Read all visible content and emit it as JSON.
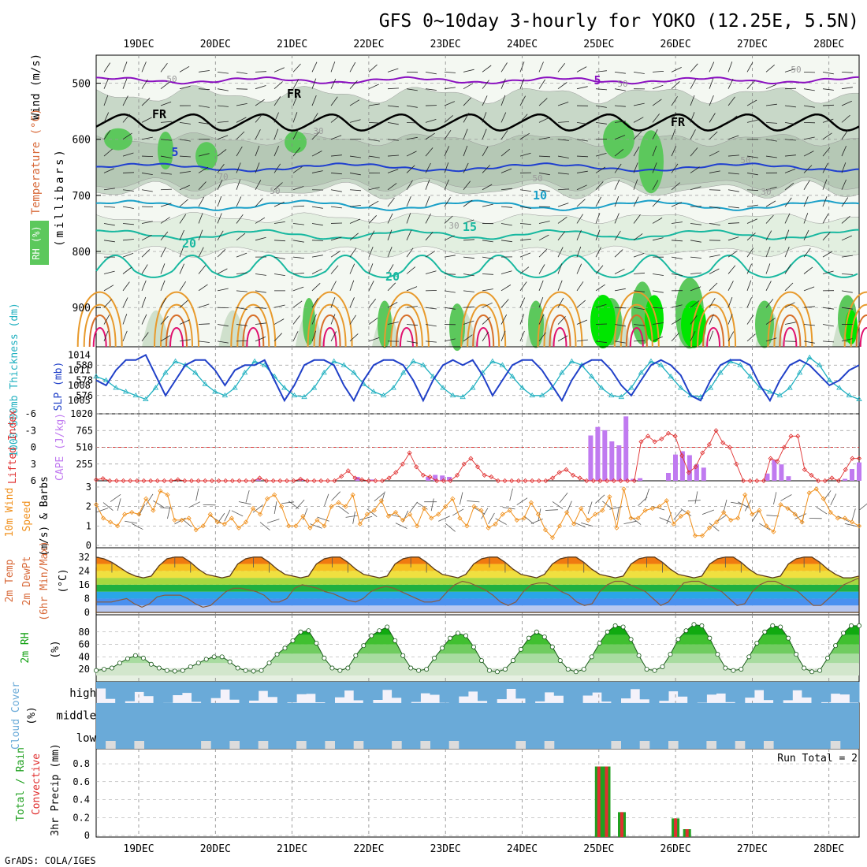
{
  "title": "GFS 0~10day 3-hourly for YOKO (12.25E, 5.5N)",
  "credit": "GrADS: COLA/IGES",
  "days": [
    "19DEC",
    "20DEC",
    "21DEC",
    "22DEC",
    "23DEC",
    "24DEC",
    "25DEC",
    "26DEC",
    "27DEC",
    "28DEC"
  ],
  "colors": {
    "sounding_bg": "#c8d8c8",
    "rh_mid": "#e2efe0",
    "rh_green": "#5cc85c",
    "rh_bright": "#00e600",
    "temp_blue": "#1f3fcf",
    "temp_cyan": "#1aa0c8",
    "temp_teal": "#18b8a0",
    "orange": "#e89a2c",
    "magenta": "#e0106e",
    "purple": "#8a10c0",
    "slp": "#2040c8",
    "thick": "#20b0c0",
    "cape": "#c07af0",
    "li": "#e03030",
    "wind": "#f0901c",
    "rh2m": "#10a010",
    "cloud": "#6aaad8",
    "rain": "#20a020",
    "conv": "#e03030"
  },
  "panels": {
    "sounding": {
      "ylabel_wind": "Wind (m/s)",
      "ylabel_temp": "Temperature (°C)",
      "ylabel_rh": "RH (%)",
      "ylabel_p": "(millibars)",
      "levels": [
        "500",
        "600",
        "700",
        "800",
        "900"
      ],
      "contour_labels": [
        {
          "text": "FR",
          "c": "black"
        },
        {
          "text": "FR",
          "c": "black"
        },
        {
          "text": "FR",
          "c": "black"
        },
        {
          "text": "5",
          "c": "purple"
        },
        {
          "text": "5",
          "c": "temp_blue"
        },
        {
          "text": "10",
          "c": "temp_cyan"
        },
        {
          "text": "15",
          "c": "temp_teal"
        },
        {
          "text": "20",
          "c": "temp_teal"
        },
        {
          "text": "20",
          "c": "temp_teal"
        },
        {
          "text": "30",
          "c": "gray"
        },
        {
          "text": "50",
          "c": "gray"
        },
        {
          "text": "50",
          "c": "gray"
        },
        {
          "text": "70",
          "c": "gray"
        },
        {
          "text": "30",
          "c": "gray"
        },
        {
          "text": "50",
          "c": "gray"
        },
        {
          "text": "30",
          "c": "gray"
        },
        {
          "text": "50",
          "c": "gray"
        },
        {
          "text": "50",
          "c": "gray"
        },
        {
          "text": "50",
          "c": "gray"
        }
      ]
    },
    "thickness": {
      "ylabel_left": "1000-500mb Thickness (dm)",
      "ylabel_right": "SLP (mb)",
      "left_ticks": [
        "580",
        "578",
        "576"
      ],
      "right_ticks": [
        "1014",
        "1011",
        "1008",
        "1005"
      ]
    },
    "cape": {
      "ylabel_left": "Lifted Index",
      "ylabel_right": "CAPE (J/kg)",
      "left_ticks": [
        "-6",
        "-3",
        "0",
        "3",
        "6"
      ],
      "right_ticks": [
        "1020",
        "765",
        "510",
        "255"
      ]
    },
    "wind10m": {
      "ylabel_a": "10m Wind",
      "ylabel_b": "Speed",
      "ylabel_c": "(m/s) & Barbs",
      "ticks": [
        "3",
        "2",
        "1",
        "0"
      ]
    },
    "temp2m": {
      "ylabel_a": "2m Temp",
      "ylabel_b": "2m DewPt",
      "ylabel_c": "(6hr Min/Max)",
      "ylabel_unit": "(°C)",
      "ticks": [
        "32",
        "24",
        "16",
        "8",
        "0"
      ]
    },
    "rh2m": {
      "ylabel": "2m RH",
      "unit": "(%)",
      "ticks": [
        "80",
        "60",
        "40",
        "20"
      ]
    },
    "cloud": {
      "ylabel": "Cloud Cover",
      "unit": "(%)",
      "rows": [
        "high",
        "middle",
        "low"
      ]
    },
    "precip": {
      "ylabel_a": "Total / Rain",
      "ylabel_b": "Convective",
      "ylabel_c": "3hr Precip (mm)",
      "ticks": [
        "0.8",
        "0.6",
        "0.4",
        "0.2",
        "0"
      ],
      "run_total": "Run Total = 2"
    }
  },
  "chart_data": [
    {
      "type": "heatmap",
      "name": "sounding",
      "x_days": [
        "19DEC",
        "20DEC",
        "21DEC",
        "22DEC",
        "23DEC",
        "24DEC",
        "25DEC",
        "26DEC",
        "27DEC",
        "28DEC"
      ],
      "y_pressure_mb": [
        500,
        600,
        700,
        800,
        900
      ],
      "ylim": [
        450,
        970
      ],
      "contours": {
        "FR_level_mb": 570,
        "temp_5C_mb": 650,
        "temp_10C_mb": 718,
        "temp_15C_mb": 770,
        "temp_20C_mb": 830,
        "temp_minus5C_mb": 495
      }
    },
    {
      "type": "line",
      "name": "thickness_slp",
      "ylim_thickness": [
        574,
        582
      ],
      "ylim_slp": [
        1003,
        1015
      ],
      "slp": [
        1009,
        1008,
        1011,
        1013,
        1013,
        1014,
        1010,
        1006,
        1009,
        1012,
        1013,
        1013,
        1011,
        1008,
        1011,
        1012,
        1012,
        1013,
        1009,
        1005,
        1008,
        1012,
        1013,
        1013,
        1012,
        1008,
        1005,
        1009,
        1012,
        1013,
        1013,
        1012,
        1009,
        1005,
        1009,
        1012,
        1013,
        1012,
        1013,
        1010,
        1006,
        1009,
        1012,
        1013,
        1013,
        1011,
        1008,
        1005,
        1009,
        1012,
        1013,
        1013,
        1011,
        1008,
        1006,
        1009,
        1012,
        1013,
        1012,
        1010,
        1006,
        1005,
        1009,
        1012,
        1013,
        1013,
        1012,
        1008,
        1005,
        1009,
        1012,
        1013,
        1012,
        1010,
        1008,
        1009,
        1011,
        1012
      ],
      "thickness": [
        578.5,
        578,
        577,
        576.5,
        576,
        575.5,
        577,
        579,
        580.5,
        580,
        579,
        577.5,
        576.5,
        576,
        577,
        579,
        580.5,
        580,
        578.5,
        577,
        576,
        575.8,
        577,
        579,
        580.5,
        580,
        579,
        577.5,
        576.5,
        576,
        577,
        579,
        580.5,
        580,
        578.5,
        577,
        576,
        575.8,
        577,
        579,
        580.5,
        580,
        578.5,
        577,
        576,
        576,
        577,
        579,
        580.5,
        580,
        578.5,
        577,
        576,
        575.8,
        577,
        579,
        580.5,
        580,
        578.5,
        577,
        576,
        575.8,
        577,
        579,
        580.5,
        580,
        578.5,
        577,
        576.5,
        576,
        577,
        579,
        581,
        580,
        578,
        577,
        576,
        575.5
      ]
    },
    {
      "type": "bar",
      "name": "cape_li",
      "ylim_cape": [
        0,
        1020
      ],
      "ylim_li": [
        6,
        -6
      ],
      "cape": [
        0,
        0,
        0,
        0,
        0,
        0,
        0,
        0,
        0,
        0,
        0,
        0,
        0,
        0,
        0,
        0,
        0,
        0,
        0,
        0,
        0,
        0,
        0,
        30,
        0,
        0,
        0,
        0,
        0,
        30,
        0,
        0,
        0,
        0,
        0,
        0,
        0,
        60,
        0,
        20,
        0,
        0,
        0,
        0,
        0,
        0,
        0,
        60,
        90,
        80,
        60,
        0,
        0,
        0,
        0,
        0,
        0,
        0,
        0,
        0,
        0,
        0,
        0,
        0,
        0,
        0,
        0,
        0,
        0,
        0,
        690,
        820,
        770,
        600,
        540,
        980,
        30,
        40,
        0,
        0,
        0,
        120,
        400,
        450,
        390,
        250,
        200,
        0,
        0,
        0,
        0,
        0,
        0,
        0,
        0,
        110,
        320,
        250,
        70,
        0,
        0,
        0,
        0,
        0,
        0,
        0,
        30,
        180,
        280
      ],
      "li": [
        5.8,
        5.6,
        6,
        6,
        6,
        6,
        6,
        6,
        6,
        6,
        6,
        6,
        5.8,
        6,
        6,
        6,
        6,
        6,
        6,
        6,
        6,
        6,
        6,
        6,
        5.5,
        6,
        6,
        6,
        6,
        6,
        5.7,
        6,
        6,
        6,
        6,
        6,
        5.2,
        4.2,
        5.5,
        5.8,
        6,
        6,
        6,
        5.5,
        4.5,
        3,
        1,
        3.5,
        5,
        5.3,
        6,
        6,
        6,
        5,
        3,
        2,
        3.5,
        5,
        5.3,
        6,
        6,
        6,
        6,
        6,
        6,
        6,
        6,
        5.5,
        4.5,
        4,
        5,
        5.5,
        6,
        6,
        6,
        6,
        6,
        6,
        6,
        6,
        -1,
        -2,
        -1,
        -1.5,
        -2.5,
        -2,
        1.5,
        4.5,
        3.5,
        1,
        -0.5,
        -3,
        -0.8,
        0,
        3,
        6,
        6,
        6,
        6,
        2,
        2.5,
        0,
        -2,
        -2,
        4,
        5,
        6,
        6,
        5.5,
        6,
        4,
        2,
        2
      ]
    },
    {
      "type": "line",
      "name": "wind10m",
      "ylim": [
        0,
        3.2
      ],
      "speed": [
        2.1,
        1.4,
        1.2,
        1,
        1.6,
        1.7,
        1.6,
        2.4,
        1.8,
        2.8,
        2.6,
        1.3,
        1.3,
        1.4,
        0.8,
        1,
        1.6,
        1.2,
        1.1,
        1.4,
        0.9,
        1.2,
        1.9,
        1.6,
        2.4,
        2.6,
        2,
        1,
        1,
        1.5,
        0.9,
        1.3,
        1,
        2,
        2.2,
        2,
        2.6,
        1.1,
        1.6,
        1.8,
        2.3,
        1.5,
        1.7,
        1.3,
        1.6,
        1,
        1.9,
        1.4,
        1.6,
        2,
        2.4,
        1.4,
        1,
        2,
        1.8,
        0.9,
        1.1,
        1.6,
        1.8,
        1.3,
        1.4,
        2.2,
        1.6,
        0.8,
        0.4,
        1,
        1.7,
        1.1,
        1.9,
        1.3,
        1.6,
        1.8,
        2.5,
        0.9,
        2.9,
        1.4,
        1.4,
        1.8,
        1.9,
        2,
        2.3,
        1.1,
        1.5,
        1.7,
        0.5,
        0.5,
        0.9,
        1.2,
        1.7,
        1.3,
        1.4,
        2.6,
        1.6,
        1.8,
        1,
        0.7,
        2.1,
        1.9,
        1.6,
        1.2,
        2.7,
        2.9,
        2.4,
        1.7,
        1.4,
        1.4,
        1.2,
        1
      ]
    },
    {
      "type": "area",
      "name": "temp2m",
      "ylim": [
        0,
        36
      ],
      "temp": [
        32,
        31,
        29,
        26,
        23,
        21,
        20,
        21,
        27,
        31,
        32,
        32,
        29,
        25,
        22,
        21,
        20,
        21,
        28,
        31,
        32,
        32,
        29,
        25,
        22,
        21,
        20,
        21,
        28,
        31,
        32,
        32,
        29,
        25,
        22,
        21,
        20,
        21,
        28,
        31,
        32,
        32,
        29,
        25,
        22,
        21,
        20,
        22,
        28,
        31,
        32,
        32,
        29,
        25,
        22,
        21,
        20,
        22,
        28,
        31,
        32,
        32,
        29,
        25,
        22,
        21,
        20,
        21,
        28,
        31,
        32,
        32,
        29,
        25,
        22,
        21,
        20,
        21,
        28,
        31,
        32,
        32,
        29,
        25,
        22,
        21,
        20,
        21,
        28,
        31,
        32,
        32,
        29,
        25,
        22,
        20,
        20,
        21
      ],
      "dewpoint": [
        6,
        6,
        6,
        7,
        8,
        5,
        3,
        5,
        9,
        10,
        10,
        10,
        8,
        5,
        3,
        4,
        8,
        12,
        14,
        14,
        13,
        12,
        10,
        6,
        6,
        8,
        14,
        16,
        15,
        14,
        12,
        11,
        9,
        7,
        6,
        8,
        12,
        14,
        15,
        14,
        12,
        10,
        8,
        6,
        6,
        7,
        12,
        16,
        18,
        17,
        15,
        13,
        10,
        6,
        4,
        6,
        12,
        16,
        17,
        17,
        15,
        12,
        10,
        6,
        4,
        5,
        12,
        16,
        18,
        18,
        16,
        14,
        12,
        8,
        4,
        6,
        12,
        17,
        18,
        18,
        16,
        14,
        12,
        8,
        4,
        5,
        12,
        16,
        18,
        18,
        16,
        14,
        12,
        8,
        4,
        4,
        8,
        12,
        16,
        18,
        20
      ]
    },
    {
      "type": "area",
      "name": "rh2m",
      "ylim": [
        10,
        100
      ],
      "rh": [
        18,
        20,
        22,
        30,
        37,
        42,
        38,
        28,
        22,
        18,
        17,
        18,
        24,
        30,
        36,
        40,
        40,
        32,
        22,
        18,
        17,
        18,
        30,
        44,
        54,
        66,
        80,
        82,
        62,
        38,
        22,
        18,
        22,
        42,
        58,
        74,
        82,
        88,
        66,
        42,
        22,
        18,
        20,
        38,
        54,
        70,
        78,
        74,
        56,
        34,
        18,
        16,
        20,
        34,
        52,
        70,
        80,
        72,
        56,
        34,
        20,
        16,
        20,
        40,
        62,
        80,
        90,
        88,
        68,
        42,
        20,
        18,
        24,
        44,
        68,
        82,
        92,
        90,
        70,
        44,
        22,
        18,
        20,
        40,
        62,
        80,
        90,
        88,
        70,
        44,
        22,
        16,
        18,
        38,
        58,
        78,
        90,
        90
      ]
    },
    {
      "type": "bar",
      "name": "cloud_cover",
      "rows": [
        "high",
        "middle",
        "low"
      ],
      "values_pct": {
        "high": "mostly 60-100",
        "middle": "90-100",
        "low": "95-100"
      }
    },
    {
      "type": "bar",
      "name": "precip3h",
      "ylim": [
        0,
        0.95
      ],
      "run_total": 2,
      "times_day_index": [
        6.0,
        6.1,
        6.3,
        7.0,
        7.15
      ],
      "total": [
        0.77,
        0.77,
        0.26,
        0.19,
        0.07
      ],
      "convective": [
        0.77,
        0.77,
        0.26,
        0.19,
        0.07
      ]
    }
  ]
}
